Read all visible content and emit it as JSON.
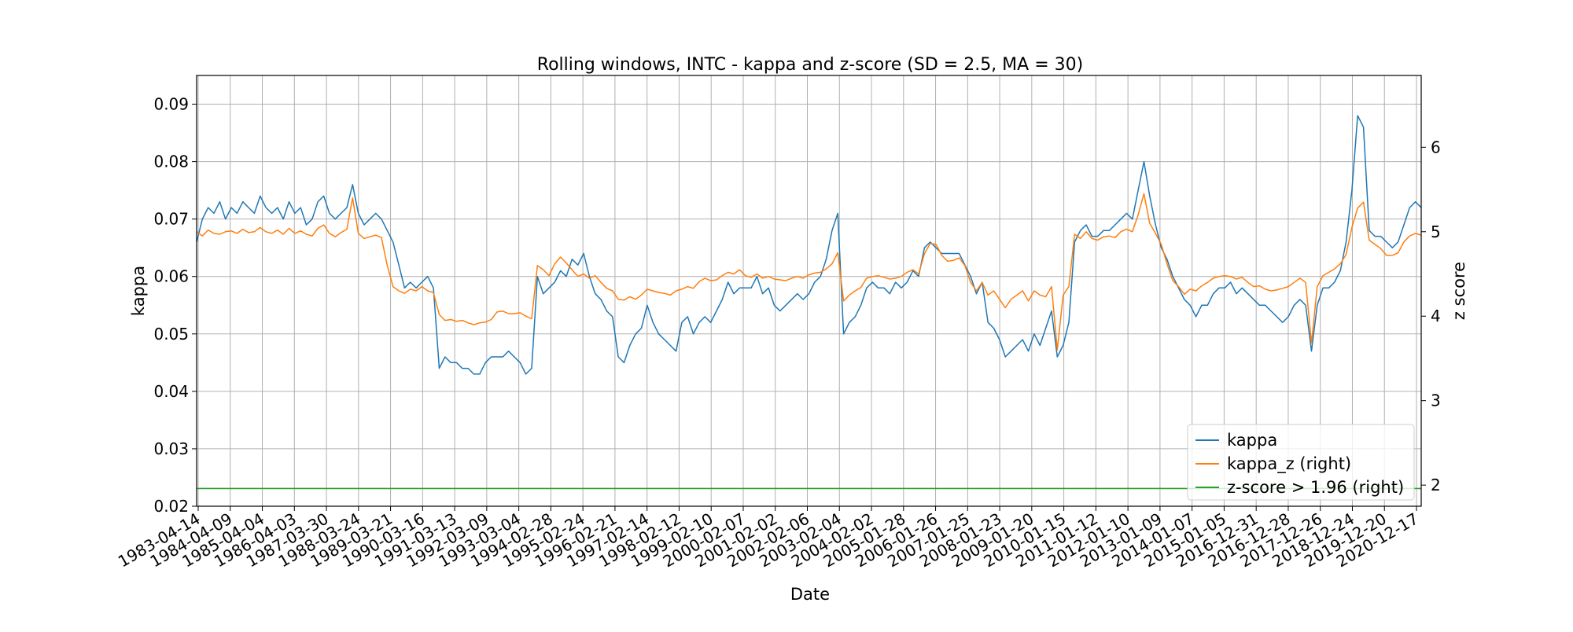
{
  "chart_data": {
    "type": "line",
    "title": "Rolling windows, INTC - kappa and z-score (SD = 2.5, MA = 30)",
    "xlabel": "Date",
    "ylabel": "kappa",
    "y2label": "z score",
    "grid": true,
    "legend_position": "lower-right",
    "x_tick_labels": [
      "1983-04-14",
      "1984-04-09",
      "1985-04-04",
      "1986-04-03",
      "1987-03-30",
      "1988-03-24",
      "1989-03-21",
      "1990-03-16",
      "1991-03-13",
      "1992-03-09",
      "1993-03-04",
      "1994-02-28",
      "1995-02-24",
      "1996-02-21",
      "1997-02-14",
      "1998-02-12",
      "1999-02-10",
      "2000-02-07",
      "2001-02-02",
      "2002-02-06",
      "2003-02-04",
      "2004-02-02",
      "2005-01-28",
      "2006-01-26",
      "2007-01-25",
      "2008-01-23",
      "2009-01-20",
      "2010-01-15",
      "2011-01-12",
      "2012-01-10",
      "2013-01-09",
      "2014-01-07",
      "2015-01-05",
      "2016-12-31",
      "2016-12-28",
      "2017-12-26",
      "2018-12-24",
      "2019-12-20",
      "2020-12-17"
    ],
    "ylim": [
      0.02,
      0.095
    ],
    "y_ticks": [
      "0.02",
      "0.03",
      "0.04",
      "0.05",
      "0.06",
      "0.07",
      "0.08",
      "0.09"
    ],
    "y2lim": [
      1.75,
      6.85
    ],
    "y2_ticks": [
      "2",
      "3",
      "4",
      "5",
      "6"
    ],
    "series": [
      {
        "name": "kappa",
        "axis": "left",
        "color": "#1f77b4",
        "values": [
          0.066,
          0.07,
          0.072,
          0.071,
          0.073,
          0.07,
          0.072,
          0.071,
          0.073,
          0.072,
          0.071,
          0.074,
          0.072,
          0.071,
          0.072,
          0.07,
          0.073,
          0.071,
          0.072,
          0.069,
          0.07,
          0.073,
          0.074,
          0.071,
          0.07,
          0.071,
          0.072,
          0.076,
          0.071,
          0.069,
          0.07,
          0.071,
          0.07,
          0.068,
          0.066,
          0.062,
          0.058,
          0.059,
          0.058,
          0.059,
          0.06,
          0.058,
          0.044,
          0.046,
          0.045,
          0.045,
          0.044,
          0.044,
          0.043,
          0.043,
          0.045,
          0.046,
          0.046,
          0.046,
          0.047,
          0.046,
          0.045,
          0.043,
          0.044,
          0.06,
          0.057,
          0.058,
          0.059,
          0.061,
          0.06,
          0.063,
          0.062,
          0.064,
          0.06,
          0.057,
          0.056,
          0.054,
          0.053,
          0.046,
          0.045,
          0.048,
          0.05,
          0.051,
          0.055,
          0.052,
          0.05,
          0.049,
          0.048,
          0.047,
          0.052,
          0.053,
          0.05,
          0.052,
          0.053,
          0.052,
          0.054,
          0.056,
          0.059,
          0.057,
          0.058,
          0.058,
          0.058,
          0.06,
          0.057,
          0.058,
          0.055,
          0.054,
          0.055,
          0.056,
          0.057,
          0.056,
          0.057,
          0.059,
          0.06,
          0.063,
          0.068,
          0.071,
          0.05,
          0.052,
          0.053,
          0.055,
          0.058,
          0.059,
          0.058,
          0.058,
          0.057,
          0.059,
          0.058,
          0.059,
          0.061,
          0.06,
          0.065,
          0.066,
          0.065,
          0.064,
          0.064,
          0.064,
          0.064,
          0.062,
          0.06,
          0.057,
          0.059,
          0.052,
          0.051,
          0.049,
          0.046,
          0.047,
          0.048,
          0.049,
          0.047,
          0.05,
          0.048,
          0.051,
          0.054,
          0.046,
          0.048,
          0.052,
          0.066,
          0.068,
          0.069,
          0.067,
          0.067,
          0.068,
          0.068,
          0.069,
          0.07,
          0.071,
          0.07,
          0.075,
          0.08,
          0.074,
          0.069,
          0.065,
          0.063,
          0.06,
          0.058,
          0.056,
          0.055,
          0.053,
          0.055,
          0.055,
          0.057,
          0.058,
          0.058,
          0.059,
          0.057,
          0.058,
          0.057,
          0.056,
          0.055,
          0.055,
          0.054,
          0.053,
          0.052,
          0.053,
          0.055,
          0.056,
          0.055,
          0.047,
          0.055,
          0.058,
          0.058,
          0.059,
          0.061,
          0.066,
          0.075,
          0.088,
          0.086,
          0.068,
          0.067,
          0.067,
          0.066,
          0.065,
          0.066,
          0.069,
          0.072,
          0.073,
          0.072
        ]
      },
      {
        "name": "kappa_z (right)",
        "axis": "right",
        "color": "#ff7f0e",
        "values": [
          5.0,
          4.95,
          5.02,
          4.98,
          4.97,
          5.0,
          5.01,
          4.98,
          5.03,
          4.99,
          5.0,
          5.05,
          5.0,
          4.98,
          5.02,
          4.97,
          5.04,
          4.98,
          5.01,
          4.97,
          4.95,
          5.04,
          5.08,
          4.98,
          4.94,
          4.99,
          5.03,
          5.4,
          4.98,
          4.92,
          4.94,
          4.96,
          4.93,
          4.6,
          4.35,
          4.3,
          4.27,
          4.32,
          4.3,
          4.35,
          4.3,
          4.28,
          4.02,
          3.95,
          3.96,
          3.94,
          3.95,
          3.92,
          3.9,
          3.92,
          3.93,
          3.96,
          4.05,
          4.06,
          4.03,
          4.03,
          4.04,
          4.0,
          3.97,
          4.6,
          4.55,
          4.48,
          4.62,
          4.7,
          4.63,
          4.55,
          4.47,
          4.5,
          4.45,
          4.48,
          4.4,
          4.33,
          4.3,
          4.2,
          4.19,
          4.23,
          4.2,
          4.25,
          4.32,
          4.3,
          4.28,
          4.27,
          4.25,
          4.3,
          4.32,
          4.35,
          4.33,
          4.41,
          4.45,
          4.42,
          4.43,
          4.48,
          4.52,
          4.5,
          4.55,
          4.48,
          4.46,
          4.5,
          4.45,
          4.47,
          4.44,
          4.43,
          4.42,
          4.45,
          4.47,
          4.45,
          4.49,
          4.51,
          4.52,
          4.56,
          4.62,
          4.75,
          4.18,
          4.25,
          4.3,
          4.34,
          4.45,
          4.47,
          4.48,
          4.46,
          4.44,
          4.45,
          4.47,
          4.52,
          4.55,
          4.5,
          4.74,
          4.86,
          4.85,
          4.72,
          4.65,
          4.66,
          4.69,
          4.6,
          4.4,
          4.3,
          4.4,
          4.25,
          4.3,
          4.2,
          4.1,
          4.2,
          4.25,
          4.3,
          4.18,
          4.3,
          4.25,
          4.23,
          4.35,
          3.6,
          4.25,
          4.35,
          4.97,
          4.92,
          5.0,
          4.92,
          4.9,
          4.94,
          4.95,
          4.93,
          5.0,
          5.03,
          5.0,
          5.2,
          5.45,
          5.1,
          4.98,
          4.85,
          4.62,
          4.42,
          4.35,
          4.26,
          4.32,
          4.3,
          4.36,
          4.4,
          4.45,
          4.47,
          4.48,
          4.47,
          4.44,
          4.46,
          4.4,
          4.35,
          4.36,
          4.32,
          4.3,
          4.31,
          4.33,
          4.35,
          4.4,
          4.45,
          4.4,
          3.68,
          4.35,
          4.48,
          4.52,
          4.56,
          4.62,
          4.73,
          5.05,
          5.28,
          5.35,
          4.9,
          4.85,
          4.8,
          4.72,
          4.72,
          4.75,
          4.88,
          4.95,
          4.98,
          4.96
        ]
      },
      {
        "name": "z-score > 1.96 (right)",
        "axis": "right",
        "color": "#2ca02c",
        "values": [
          1.96,
          1.96
        ]
      }
    ]
  }
}
